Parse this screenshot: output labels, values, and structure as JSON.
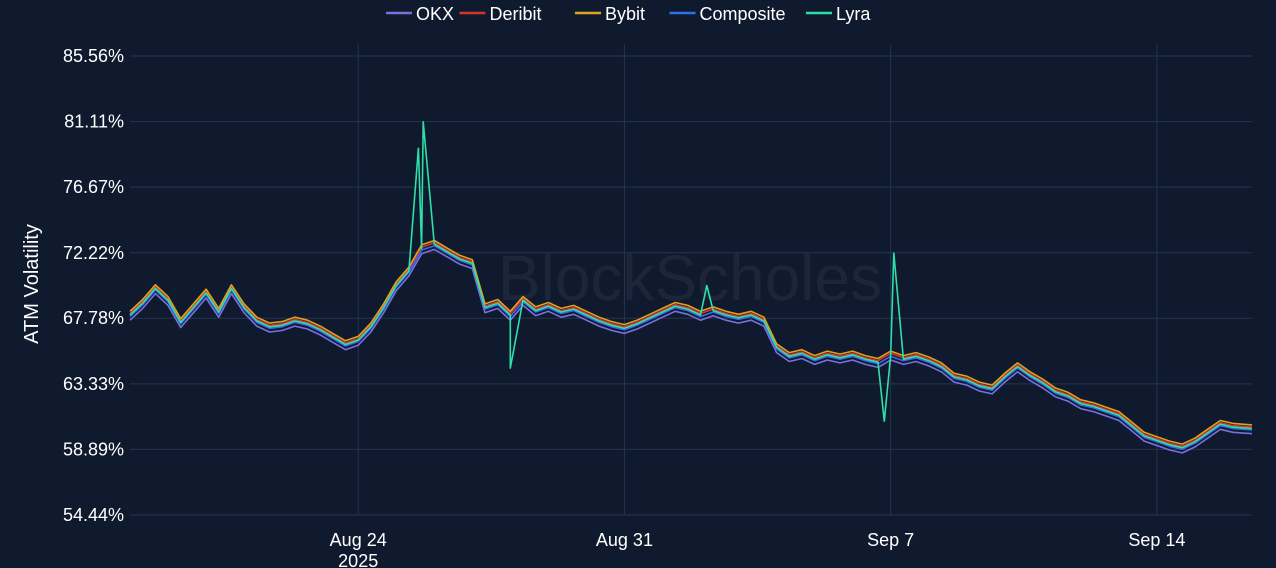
{
  "chart_data": {
    "type": "line",
    "title": "",
    "xlabel": "",
    "ylabel": "ATM Volatility",
    "watermark": "BlockScholes",
    "legend_position": "top-center",
    "grid": true,
    "xlim": [
      "2025-08-18",
      "2025-09-16T12:00"
    ],
    "ylim": [
      54.44,
      85.56
    ],
    "y_ticks": [
      "85.56%",
      "81.11%",
      "76.67%",
      "72.22%",
      "67.78%",
      "63.33%",
      "58.89%",
      "54.44%"
    ],
    "x_ticks": [
      {
        "x": "2025-08-24",
        "label": "Aug 24",
        "sublabel": "2025"
      },
      {
        "x": "2025-08-31",
        "label": "Aug 31",
        "sublabel": ""
      },
      {
        "x": "2025-09-07",
        "label": "Sep 7",
        "sublabel": ""
      },
      {
        "x": "2025-09-14",
        "label": "Sep 14",
        "sublabel": ""
      }
    ],
    "base": [
      [
        "2025-08-18T00:00",
        68.0
      ],
      [
        "2025-08-18T08:00",
        68.8
      ],
      [
        "2025-08-18T16:00",
        69.8
      ],
      [
        "2025-08-19T00:00",
        69.0
      ],
      [
        "2025-08-19T08:00",
        67.5
      ],
      [
        "2025-08-19T16:00",
        68.5
      ],
      [
        "2025-08-20T00:00",
        69.5
      ],
      [
        "2025-08-20T08:00",
        68.2
      ],
      [
        "2025-08-20T16:00",
        69.8
      ],
      [
        "2025-08-21T00:00",
        68.5
      ],
      [
        "2025-08-21T08:00",
        67.6
      ],
      [
        "2025-08-21T16:00",
        67.2
      ],
      [
        "2025-08-22T00:00",
        67.3
      ],
      [
        "2025-08-22T08:00",
        67.6
      ],
      [
        "2025-08-22T16:00",
        67.4
      ],
      [
        "2025-08-23T00:00",
        67.0
      ],
      [
        "2025-08-23T08:00",
        66.5
      ],
      [
        "2025-08-23T16:00",
        66.0
      ],
      [
        "2025-08-24T00:00",
        66.3
      ],
      [
        "2025-08-24T08:00",
        67.2
      ],
      [
        "2025-08-24T16:00",
        68.5
      ],
      [
        "2025-08-25T00:00",
        70.0
      ],
      [
        "2025-08-25T08:00",
        71.0
      ],
      [
        "2025-08-25T16:00",
        72.5
      ],
      [
        "2025-08-26T00:00",
        72.8
      ],
      [
        "2025-08-26T08:00",
        72.3
      ],
      [
        "2025-08-26T16:00",
        71.8
      ],
      [
        "2025-08-27T00:00",
        71.5
      ],
      [
        "2025-08-27T08:00",
        68.5
      ],
      [
        "2025-08-27T16:00",
        68.8
      ],
      [
        "2025-08-28T00:00",
        68.0
      ],
      [
        "2025-08-28T08:00",
        69.0
      ],
      [
        "2025-08-28T16:00",
        68.3
      ],
      [
        "2025-08-29T00:00",
        68.6
      ],
      [
        "2025-08-29T08:00",
        68.2
      ],
      [
        "2025-08-29T16:00",
        68.4
      ],
      [
        "2025-08-30T00:00",
        68.0
      ],
      [
        "2025-08-30T08:00",
        67.6
      ],
      [
        "2025-08-30T16:00",
        67.3
      ],
      [
        "2025-08-31T00:00",
        67.1
      ],
      [
        "2025-08-31T08:00",
        67.4
      ],
      [
        "2025-08-31T16:00",
        67.8
      ],
      [
        "2025-09-01T00:00",
        68.2
      ],
      [
        "2025-09-01T08:00",
        68.6
      ],
      [
        "2025-09-01T16:00",
        68.4
      ],
      [
        "2025-09-02T00:00",
        68.0
      ],
      [
        "2025-09-02T08:00",
        68.3
      ],
      [
        "2025-09-02T16:00",
        68.0
      ],
      [
        "2025-09-03T00:00",
        67.8
      ],
      [
        "2025-09-03T08:00",
        68.0
      ],
      [
        "2025-09-03T16:00",
        67.6
      ],
      [
        "2025-09-04T00:00",
        65.8
      ],
      [
        "2025-09-04T08:00",
        65.2
      ],
      [
        "2025-09-04T16:00",
        65.4
      ],
      [
        "2025-09-05T00:00",
        65.0
      ],
      [
        "2025-09-05T08:00",
        65.3
      ],
      [
        "2025-09-05T16:00",
        65.1
      ],
      [
        "2025-09-06T00:00",
        65.3
      ],
      [
        "2025-09-06T08:00",
        65.0
      ],
      [
        "2025-09-06T16:00",
        64.8
      ],
      [
        "2025-09-07T00:00",
        65.3
      ],
      [
        "2025-09-07T08:00",
        65.0
      ],
      [
        "2025-09-07T16:00",
        65.2
      ],
      [
        "2025-09-08T00:00",
        64.9
      ],
      [
        "2025-09-08T08:00",
        64.5
      ],
      [
        "2025-09-08T16:00",
        63.8
      ],
      [
        "2025-09-09T00:00",
        63.6
      ],
      [
        "2025-09-09T08:00",
        63.2
      ],
      [
        "2025-09-09T16:00",
        63.0
      ],
      [
        "2025-09-10T00:00",
        63.8
      ],
      [
        "2025-09-10T08:00",
        64.5
      ],
      [
        "2025-09-10T16:00",
        63.9
      ],
      [
        "2025-09-11T00:00",
        63.4
      ],
      [
        "2025-09-11T08:00",
        62.8
      ],
      [
        "2025-09-11T16:00",
        62.5
      ],
      [
        "2025-09-12T00:00",
        62.0
      ],
      [
        "2025-09-12T08:00",
        61.8
      ],
      [
        "2025-09-12T16:00",
        61.5
      ],
      [
        "2025-09-13T00:00",
        61.2
      ],
      [
        "2025-09-13T08:00",
        60.5
      ],
      [
        "2025-09-13T16:00",
        59.8
      ],
      [
        "2025-09-14T00:00",
        59.5
      ],
      [
        "2025-09-14T08:00",
        59.2
      ],
      [
        "2025-09-14T16:00",
        59.0
      ],
      [
        "2025-09-15T00:00",
        59.4
      ],
      [
        "2025-09-15T08:00",
        60.0
      ],
      [
        "2025-09-15T16:00",
        60.6
      ],
      [
        "2025-09-16T00:00",
        60.4
      ],
      [
        "2025-09-16T12:00",
        60.3
      ]
    ],
    "series": [
      {
        "name": "OKX",
        "color": "#7b6fe0",
        "offset": -0.35,
        "spikes": []
      },
      {
        "name": "Deribit",
        "color": "#d8322b",
        "offset": 0.1,
        "spikes": []
      },
      {
        "name": "Bybit",
        "color": "#e0a020",
        "offset": 0.25,
        "spikes": []
      },
      {
        "name": "Composite",
        "color": "#2f6fe8",
        "offset": -0.1,
        "spikes": []
      },
      {
        "name": "Lyra",
        "color": "#2ee0a8",
        "offset": 0.0,
        "spikes": [
          [
            "2025-08-25T14:00",
            79.3
          ],
          [
            "2025-08-25T17:00",
            81.1
          ],
          [
            "2025-08-28T00:00",
            64.4
          ],
          [
            "2025-09-02T04:00",
            70.0
          ],
          [
            "2025-09-06T20:00",
            60.8
          ],
          [
            "2025-09-07T02:00",
            72.2
          ]
        ]
      }
    ]
  }
}
